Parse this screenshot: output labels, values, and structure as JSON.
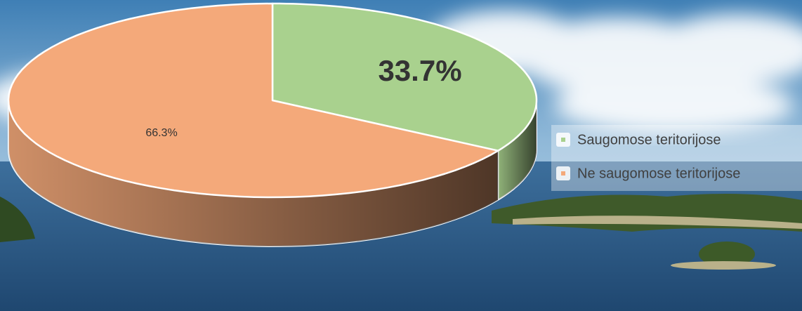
{
  "chart_data": {
    "type": "pie",
    "categories": [
      "Saugomose teritorijose",
      "Ne saugomose teritorijose"
    ],
    "values": [
      33.7,
      66.3
    ],
    "value_labels": [
      "33.7%",
      "66.3%"
    ],
    "colors": [
      "#a9d18e",
      "#f4a97a"
    ],
    "legend": "right"
  }
}
